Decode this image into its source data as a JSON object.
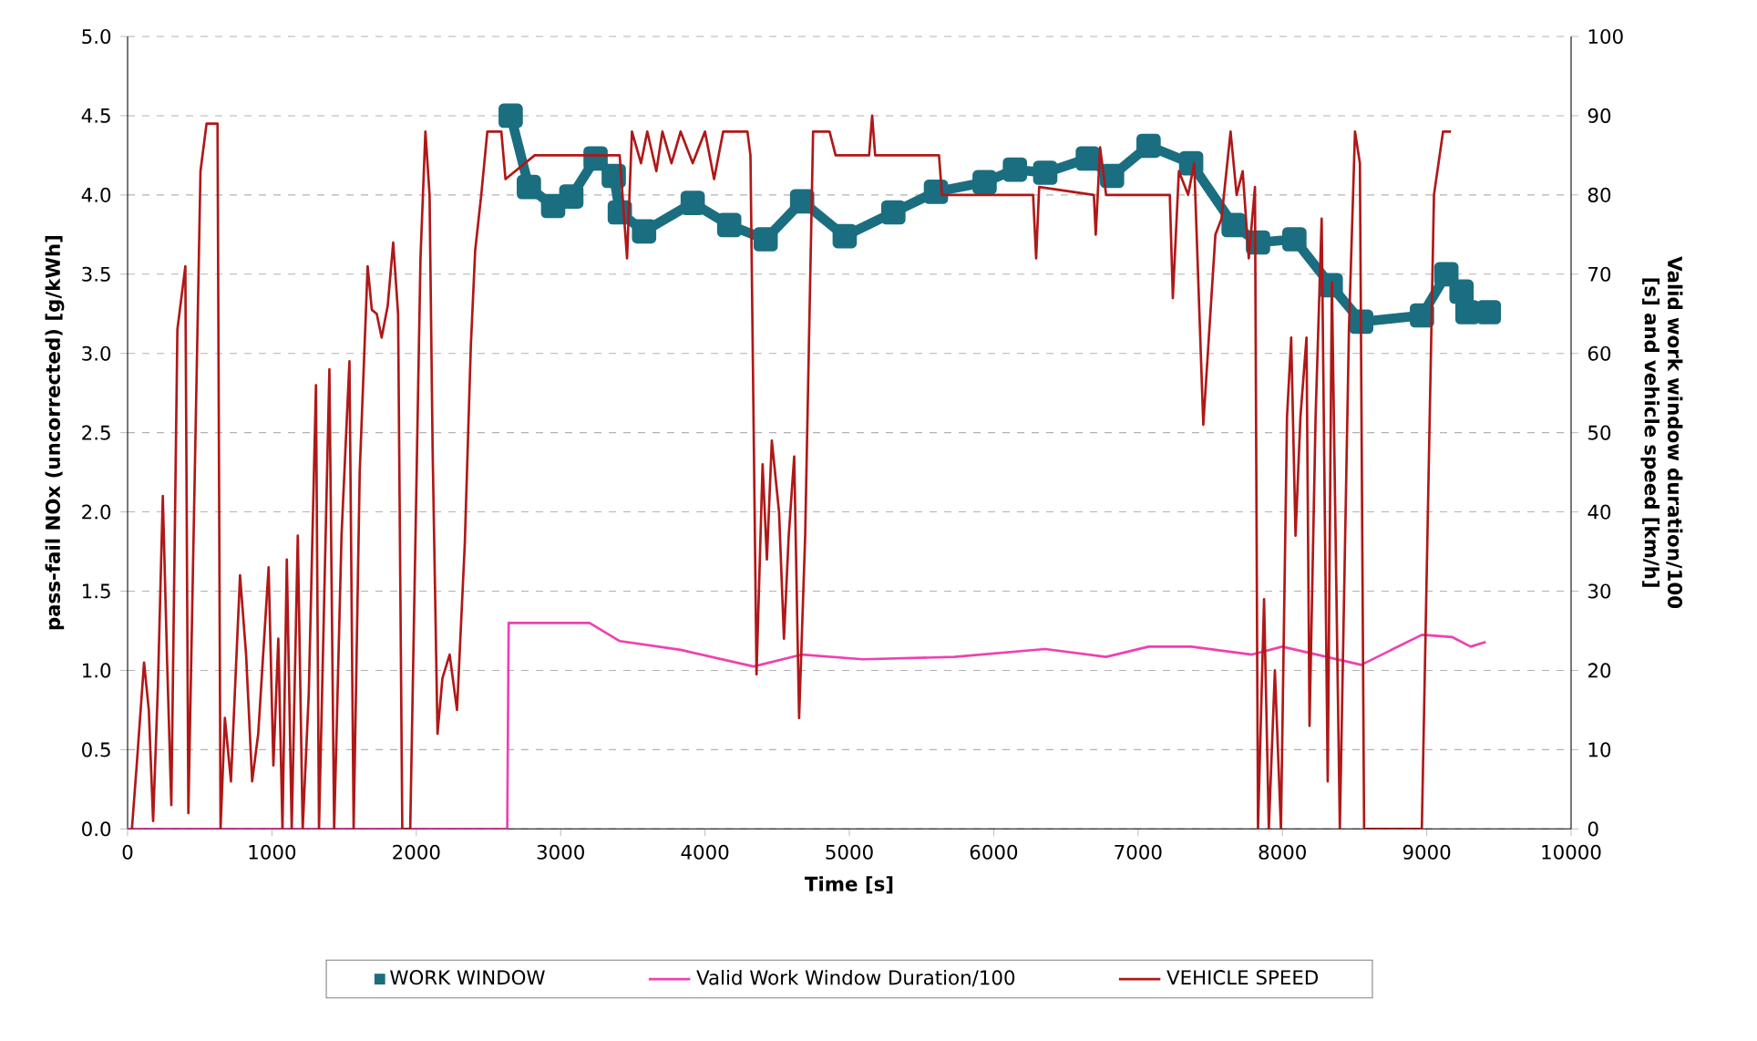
{
  "chart_data": {
    "type": "line",
    "xlabel": "Time [s]",
    "ylabel": "pass-fail NOx (uncorrected) [g/kWh]",
    "y2label": "Valid work window duration/100 [s] and vehicle speed [km/h]",
    "xlim": [
      0,
      10000
    ],
    "xticks": [
      0,
      1000,
      2000,
      3000,
      4000,
      5000,
      6000,
      7000,
      8000,
      9000,
      10000
    ],
    "ylim": [
      0,
      5
    ],
    "yticks": [
      {
        "value": 0,
        "label": "0.0"
      },
      {
        "value": 0.5,
        "label": "0.5"
      },
      {
        "value": 1,
        "label": "1.0"
      },
      {
        "value": 1.5,
        "label": "1.5"
      },
      {
        "value": 2,
        "label": "2.0"
      },
      {
        "value": 2.5,
        "label": "2.5"
      },
      {
        "value": 3,
        "label": "3.0"
      },
      {
        "value": 3.5,
        "label": "3.5"
      },
      {
        "value": 4,
        "label": "4.0"
      },
      {
        "value": 4.5,
        "label": "4.5"
      },
      {
        "value": 5,
        "label": "5.0"
      }
    ],
    "y2lim": [
      0,
      100
    ],
    "y2ticks": [
      0,
      10,
      20,
      30,
      40,
      50,
      60,
      70,
      80,
      90,
      100
    ],
    "grid": "y",
    "legend": "bottom",
    "series": [
      {
        "name": "WORK WINDOW",
        "color": "#1a6e80",
        "marker": "square",
        "x": [
          2654,
          2780,
          2948,
          3074,
          3242,
          3368,
          3410,
          3578,
          3915,
          4168,
          4420,
          4673,
          4968,
          5305,
          5600,
          5937,
          6147,
          6357,
          6652,
          6820,
          7073,
          7368,
          7662,
          7831,
          8083,
          8335,
          8546,
          8967,
          9136,
          9241,
          9282,
          9430
        ],
        "values": [
          4.5,
          4.05,
          3.93,
          3.99,
          4.23,
          4.12,
          3.89,
          3.77,
          3.95,
          3.81,
          3.72,
          3.96,
          3.74,
          3.89,
          4.02,
          4.08,
          4.16,
          4.14,
          4.23,
          4.12,
          4.31,
          4.2,
          3.81,
          3.7,
          3.72,
          3.43,
          3.2,
          3.24,
          3.5,
          3.39,
          3.26,
          3.26
        ]
      },
      {
        "name": "Valid Work Window Duration/100",
        "color": "#f040b0",
        "axis": "y2",
        "x": [
          0,
          2630,
          2640,
          3200,
          3410,
          3831,
          4336,
          4673,
          5094,
          5726,
          6357,
          6779,
          7073,
          7368,
          7789,
          7999,
          8546,
          8967,
          9178,
          9304,
          9409
        ],
        "values": [
          0,
          0,
          26,
          26,
          23.7,
          22.6,
          20.5,
          22,
          21.4,
          21.7,
          22.7,
          21.7,
          23,
          23,
          22,
          23,
          20.7,
          24.5,
          24.2,
          23,
          23.6
        ]
      },
      {
        "name": "VEHICLE SPEED",
        "color": "#b01818",
        "axis": "y2",
        "x": [
          30,
          63,
          114,
          147,
          177,
          210,
          244,
          274,
          303,
          345,
          400,
          421,
          505,
          547,
          623,
          644,
          674,
          716,
          779,
          821,
          863,
          905,
          977,
          1010,
          1044,
          1073,
          1103,
          1137,
          1179,
          1213,
          1255,
          1305,
          1326,
          1398,
          1431,
          1482,
          1537,
          1566,
          1608,
          1663,
          1692,
          1726,
          1760,
          1802,
          1840,
          1874,
          1903,
          1958,
          2029,
          2063,
          2092,
          2113,
          2147,
          2181,
          2231,
          2282,
          2336,
          2378,
          2408,
          2450,
          2492,
          2589,
          2618,
          2820,
          3409,
          3460,
          3494,
          3557,
          3600,
          3663,
          3705,
          3768,
          3831,
          3915,
          4000,
          4063,
          4126,
          4294,
          4315,
          4357,
          4399,
          4429,
          4463,
          4513,
          4547,
          4580,
          4618,
          4652,
          4694,
          4749,
          4863,
          4905,
          5137,
          5158,
          5179,
          5621,
          5642,
          6273,
          6294,
          6315,
          6694,
          6707,
          6737,
          6779,
          7220,
          7241,
          7283,
          7347,
          7389,
          7452,
          7536,
          7578,
          7641,
          7683,
          7725,
          7767,
          7810,
          7831,
          7873,
          7906,
          7948,
          7990,
          8032,
          8061,
          8091,
          8125,
          8167,
          8188,
          8230,
          8272,
          8314,
          8343,
          8398,
          8461,
          8503,
          8537,
          8566,
          8966,
          9050,
          9113,
          9168
        ],
        "values": [
          0,
          8,
          21,
          15,
          1,
          18,
          42,
          21,
          3,
          63,
          71,
          2,
          83,
          89,
          89,
          0,
          14,
          6,
          32,
          22,
          6,
          12,
          33,
          8,
          24,
          0,
          34,
          0,
          37,
          0,
          17,
          56,
          0,
          58,
          0,
          37,
          59,
          0,
          45,
          71,
          65.5,
          65,
          62,
          66,
          74,
          65,
          0,
          0,
          72,
          88,
          80,
          48,
          12,
          19,
          22,
          15,
          36,
          61,
          73,
          80,
          88,
          88,
          82,
          85,
          85,
          72,
          88,
          84,
          88,
          83,
          88,
          84,
          88,
          84,
          88,
          82,
          88,
          88,
          85,
          19.5,
          46,
          34,
          49,
          40,
          24,
          37,
          47,
          14,
          37,
          88,
          88,
          85,
          85,
          90,
          85,
          85,
          80,
          80,
          72,
          81,
          80,
          75,
          86,
          80,
          80,
          67,
          83,
          80,
          84,
          51,
          75,
          77,
          88,
          80,
          83,
          72,
          81,
          0,
          29,
          0,
          20,
          0,
          52,
          62,
          37,
          52,
          62,
          13,
          52,
          77,
          6,
          69,
          0,
          63,
          88,
          84,
          0,
          0,
          80,
          88,
          88
        ]
      }
    ]
  }
}
